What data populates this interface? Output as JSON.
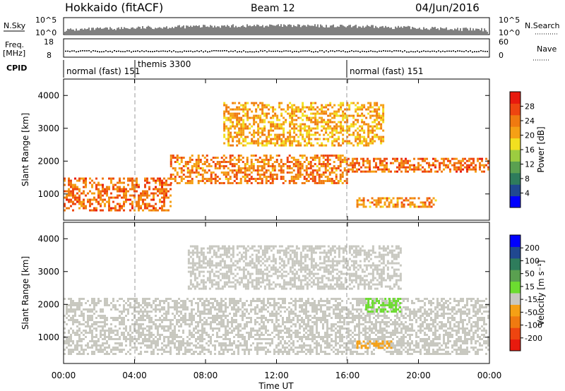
{
  "header": {
    "station": "Hokkaido (fitACF)",
    "beam": "Beam 12",
    "date": "04/Jun/2016"
  },
  "top_panels": {
    "nsky": {
      "label": "N.Sky",
      "ticks": [
        "10^5",
        "10^0"
      ]
    },
    "nsearch": {
      "label": "N.Search",
      "ticks": [
        "10^5",
        "10^0"
      ]
    },
    "freq": {
      "label_line1": "Freq.",
      "label_line2": "[MHz]",
      "ticks": [
        "18",
        "8"
      ]
    },
    "nave": {
      "label": "Nave",
      "ticks": [
        "60",
        "0"
      ]
    },
    "cpid": {
      "label": "CPID"
    }
  },
  "cpid_segments": [
    {
      "name": "normal (fast) 151",
      "start": "00:00",
      "end": "03:58"
    },
    {
      "name": "themis 3300",
      "start": "03:58",
      "end": "16:00"
    },
    {
      "name": "normal (fast) 151",
      "start": "16:00",
      "end": "24:00"
    }
  ],
  "chart_data": [
    {
      "type": "heatmap",
      "panel": "power",
      "ylabel": "Slant Range [km]",
      "yticks": [
        1000,
        2000,
        3000,
        4000
      ],
      "ylim": [
        200,
        4500
      ],
      "xlim_hours": [
        0,
        24
      ],
      "colorbar_label": "Power [dB]",
      "colorbar_ticks": [
        4,
        8,
        12,
        16,
        20,
        24,
        28
      ],
      "colors": [
        "#0000ff",
        "#204890",
        "#2e7c5c",
        "#5aa050",
        "#9ccc40",
        "#f2e020",
        "#f5a015",
        "#f07a10",
        "#ee4510",
        "#e81a0e"
      ],
      "bands": [
        {
          "range": [
            500,
            1500
          ],
          "from": "00:00",
          "to": "06:00",
          "power_db": 26
        },
        {
          "range": [
            1300,
            2200
          ],
          "from": "06:00",
          "to": "16:00",
          "power_db": 25
        },
        {
          "range": [
            1700,
            2100
          ],
          "from": "16:00",
          "to": "24:00",
          "power_db": 26
        },
        {
          "range": [
            2500,
            3800
          ],
          "from": "09:00",
          "to": "18:00",
          "power_db": 22
        },
        {
          "range": [
            600,
            900
          ],
          "from": "16:30",
          "to": "21:00",
          "power_db": 24
        }
      ]
    },
    {
      "type": "heatmap",
      "panel": "velocity",
      "ylabel": "Slant Range [km]",
      "yticks": [
        1000,
        2000,
        3000,
        4000
      ],
      "ylim": [
        200,
        4500
      ],
      "xlim_hours": [
        0,
        24
      ],
      "colorbar_label": "Velocity [m s⁻¹]",
      "colorbar_ticks": [
        200,
        100,
        50,
        15,
        -15,
        -50,
        -100,
        -200
      ],
      "colors": [
        "#0000ff",
        "#204890",
        "#2e7c5c",
        "#5aa050",
        "#6cdc30",
        "#c8c8c0",
        "#f5a015",
        "#f07a10",
        "#ee4510",
        "#e81a0e"
      ],
      "bands": [
        {
          "range": [
            500,
            2200
          ],
          "from": "00:00",
          "to": "24:00",
          "velocity": 0
        },
        {
          "range": [
            2500,
            3800
          ],
          "from": "07:00",
          "to": "19:00",
          "velocity": 0
        },
        {
          "range": [
            1800,
            2200
          ],
          "from": "17:00",
          "to": "19:00",
          "velocity": 40
        },
        {
          "range": [
            700,
            900
          ],
          "from": "16:30",
          "to": "18:30",
          "velocity": -40
        }
      ]
    }
  ],
  "xaxis": {
    "label": "Time UT",
    "ticks": [
      "00:00",
      "04:00",
      "08:00",
      "12:00",
      "16:00",
      "20:00",
      "00:00"
    ]
  }
}
